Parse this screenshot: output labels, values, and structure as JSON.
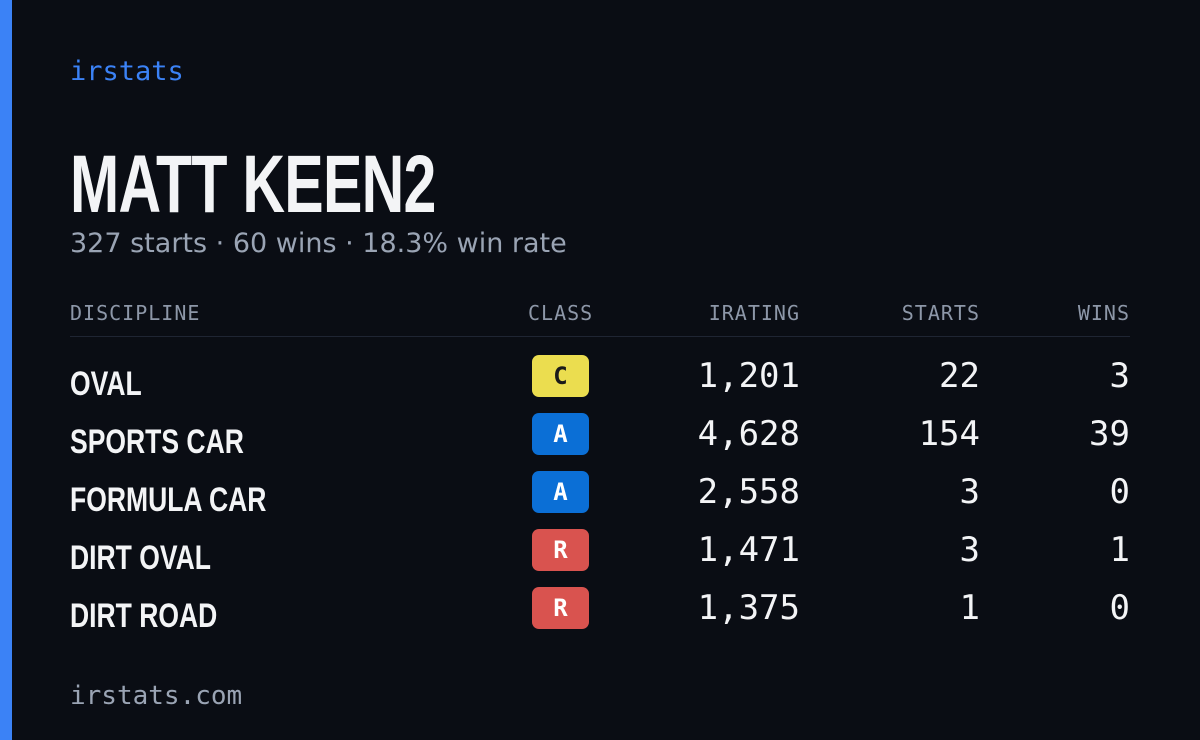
{
  "brand": "irstats",
  "title": "MATT KEEN2",
  "subtitle": "327 starts · 60 wins · 18.3% win rate",
  "table": {
    "headers": [
      "DISCIPLINE",
      "CLASS",
      "IRATING",
      "STARTS",
      "WINS"
    ],
    "rows": [
      {
        "discipline": "OVAL",
        "class": "C",
        "class_color": "#ebdd4f",
        "irating": "1,201",
        "starts": "22",
        "wins": "3"
      },
      {
        "discipline": "SPORTS CAR",
        "class": "A",
        "class_color": "#0b6fd6",
        "irating": "4,628",
        "starts": "154",
        "wins": "39"
      },
      {
        "discipline": "FORMULA CAR",
        "class": "A",
        "class_color": "#0b6fd6",
        "irating": "2,558",
        "starts": "3",
        "wins": "0"
      },
      {
        "discipline": "DIRT OVAL",
        "class": "R",
        "class_color": "#d9534f",
        "irating": "1,471",
        "starts": "3",
        "wins": "1"
      },
      {
        "discipline": "DIRT ROAD",
        "class": "R",
        "class_color": "#d9534f",
        "irating": "1,375",
        "starts": "1",
        "wins": "0"
      }
    ]
  },
  "footer": "irstats.com"
}
